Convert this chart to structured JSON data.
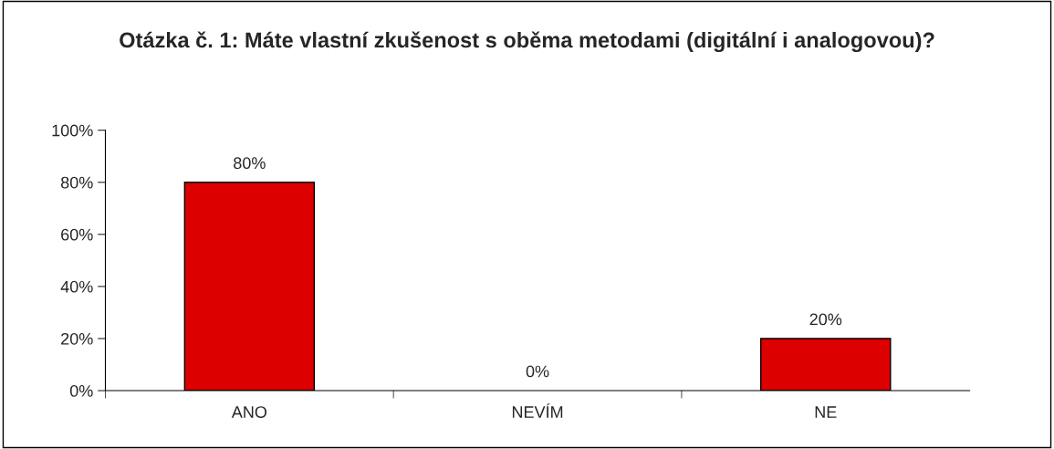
{
  "chart_data": {
    "type": "bar",
    "title": "Otázka č. 1: Máte vlastní zkušenost s oběma metodami (digitální i analogovou)?",
    "categories": [
      "ANO",
      "NEVÍM",
      "NE"
    ],
    "values": [
      80,
      0,
      20
    ],
    "value_labels": [
      "80%",
      "0%",
      "20%"
    ],
    "color": "#dd0000",
    "ylim": [
      0,
      100
    ],
    "yticks": [
      {
        "value": 0,
        "label": "0%"
      },
      {
        "value": 20,
        "label": "20%"
      },
      {
        "value": 40,
        "label": "40%"
      },
      {
        "value": 60,
        "label": "60%"
      },
      {
        "value": 80,
        "label": "80%"
      },
      {
        "value": 100,
        "label": "100%"
      }
    ],
    "grid": false,
    "legend": false
  }
}
